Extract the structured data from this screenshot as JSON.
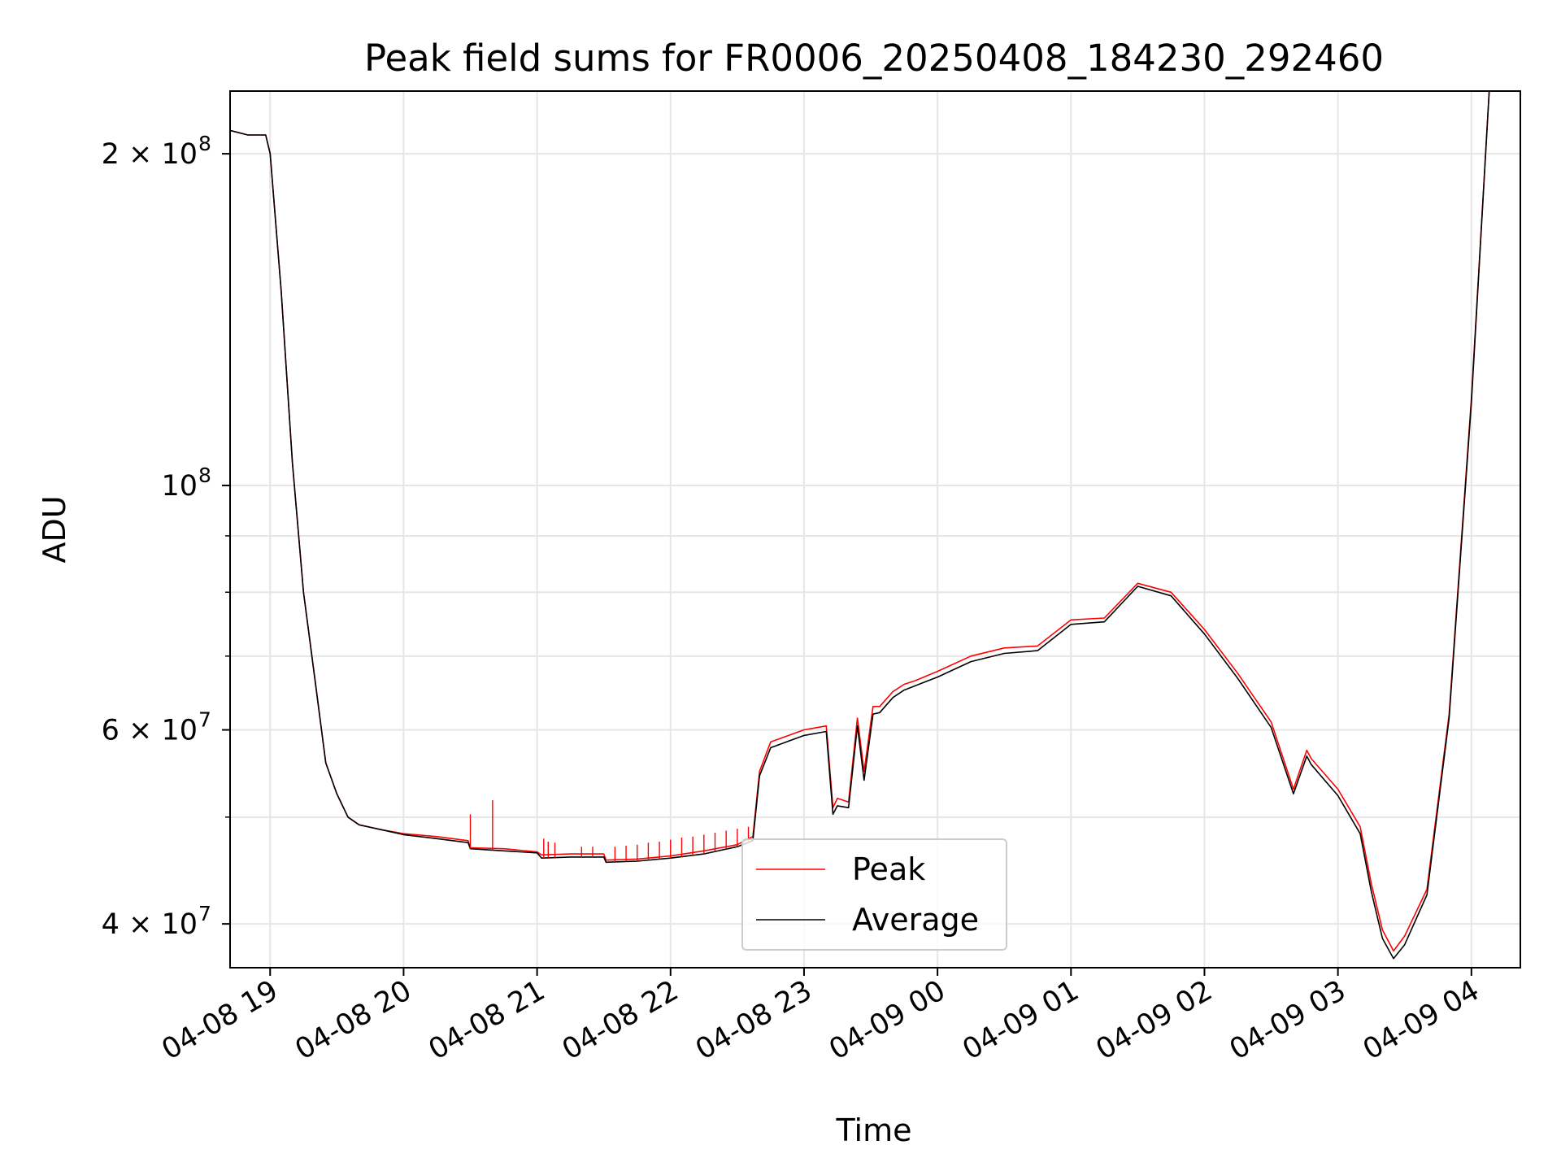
{
  "chart_data": {
    "type": "line",
    "title": "Peak field sums for FR0006_20250408_184230_292460",
    "xlabel": "Time",
    "ylabel": "ADU",
    "xlim": [
      "2025-04-08 18:42",
      "2025-04-09 04:22"
    ],
    "ylim": [
      36500000,
      228000000
    ],
    "yscale": "log",
    "grid": true,
    "legend_placement": "lower center",
    "x_ticks": [
      {
        "t": "2025-04-08 19:00",
        "label": "04-08 19"
      },
      {
        "t": "2025-04-08 20:00",
        "label": "04-08 20"
      },
      {
        "t": "2025-04-08 21:00",
        "label": "04-08 21"
      },
      {
        "t": "2025-04-08 22:00",
        "label": "04-08 22"
      },
      {
        "t": "2025-04-08 23:00",
        "label": "04-08 23"
      },
      {
        "t": "2025-04-09 00:00",
        "label": "04-09 00"
      },
      {
        "t": "2025-04-09 01:00",
        "label": "04-09 01"
      },
      {
        "t": "2025-04-09 02:00",
        "label": "04-09 02"
      },
      {
        "t": "2025-04-09 03:00",
        "label": "04-09 03"
      },
      {
        "t": "2025-04-09 04:00",
        "label": "04-09 04"
      }
    ],
    "y_major_ticks": [
      {
        "v": 40000000,
        "label": "4 × 10",
        "exp": "7"
      },
      {
        "v": 60000000,
        "label": "6 × 10",
        "exp": "7"
      },
      {
        "v": 100000000,
        "label": "10",
        "exp": "8"
      },
      {
        "v": 200000000,
        "label": "2 × 10",
        "exp": "8"
      }
    ],
    "y_minor_gridlines": [
      50000000,
      70000000,
      80000000,
      90000000
    ],
    "series": [
      {
        "name": "Peak",
        "color": "#ff0000",
        "x": [
          "2025-04-08 18:42",
          "2025-04-08 18:50",
          "2025-04-08 18:58",
          "2025-04-08 19:00",
          "2025-04-08 19:05",
          "2025-04-08 19:10",
          "2025-04-08 19:15",
          "2025-04-08 19:20",
          "2025-04-08 19:25",
          "2025-04-08 19:30",
          "2025-04-08 19:35",
          "2025-04-08 19:40",
          "2025-04-08 19:50",
          "2025-04-08 20:00",
          "2025-04-08 20:15",
          "2025-04-08 20:29",
          "2025-04-08 20:30",
          "2025-04-08 20:45",
          "2025-04-08 21:00",
          "2025-04-08 21:02",
          "2025-04-08 21:15",
          "2025-04-08 21:30",
          "2025-04-08 21:31",
          "2025-04-08 21:45",
          "2025-04-08 22:00",
          "2025-04-08 22:15",
          "2025-04-08 22:30",
          "2025-04-08 22:37",
          "2025-04-08 22:40",
          "2025-04-08 22:45",
          "2025-04-08 23:00",
          "2025-04-08 23:10",
          "2025-04-08 23:13",
          "2025-04-08 23:15",
          "2025-04-08 23:20",
          "2025-04-08 23:24",
          "2025-04-08 23:27",
          "2025-04-08 23:31",
          "2025-04-08 23:34",
          "2025-04-08 23:40",
          "2025-04-08 23:45",
          "2025-04-08 23:50",
          "2025-04-09 00:00",
          "2025-04-09 00:15",
          "2025-04-09 00:30",
          "2025-04-09 00:45",
          "2025-04-09 01:00",
          "2025-04-09 01:15",
          "2025-04-09 01:30",
          "2025-04-09 01:45",
          "2025-04-09 02:00",
          "2025-04-09 02:15",
          "2025-04-09 02:30",
          "2025-04-09 02:40",
          "2025-04-09 02:46",
          "2025-04-09 02:48",
          "2025-04-09 03:00",
          "2025-04-09 03:10",
          "2025-04-09 03:15",
          "2025-04-09 03:20",
          "2025-04-09 03:25",
          "2025-04-09 03:30",
          "2025-04-09 03:40",
          "2025-04-09 03:50",
          "2025-04-09 04:00",
          "2025-04-09 04:08"
        ],
        "y": [
          210000000,
          208000000,
          208000000,
          200000000,
          150000000,
          105000000,
          80000000,
          67000000,
          56000000,
          52500000,
          50000000,
          49200000,
          48700000,
          48300000,
          48000000,
          47600000,
          46900000,
          46800000,
          46500000,
          46200000,
          46300000,
          46300000,
          45700000,
          45800000,
          46100000,
          46600000,
          47200000,
          48000000,
          55000000,
          58500000,
          60000000,
          60500000,
          51000000,
          52000000,
          51600000,
          61500000,
          55000000,
          63000000,
          63000000,
          65000000,
          66000000,
          66500000,
          67800000,
          70000000,
          71200000,
          71500000,
          75500000,
          75800000,
          81500000,
          80000000,
          74000000,
          67500000,
          61000000,
          53000000,
          57500000,
          56500000,
          53000000,
          49000000,
          43500000,
          39500000,
          37800000,
          39000000,
          43000000,
          62000000,
          120000000,
          228000000
        ]
      },
      {
        "name": "Average",
        "color": "#000000",
        "x": [
          "2025-04-08 18:42",
          "2025-04-08 18:50",
          "2025-04-08 18:58",
          "2025-04-08 19:00",
          "2025-04-08 19:05",
          "2025-04-08 19:10",
          "2025-04-08 19:15",
          "2025-04-08 19:20",
          "2025-04-08 19:25",
          "2025-04-08 19:30",
          "2025-04-08 19:35",
          "2025-04-08 19:40",
          "2025-04-08 19:50",
          "2025-04-08 20:00",
          "2025-04-08 20:15",
          "2025-04-08 20:29",
          "2025-04-08 20:30",
          "2025-04-08 20:45",
          "2025-04-08 21:00",
          "2025-04-08 21:02",
          "2025-04-08 21:15",
          "2025-04-08 21:30",
          "2025-04-08 21:31",
          "2025-04-08 21:45",
          "2025-04-08 22:00",
          "2025-04-08 22:15",
          "2025-04-08 22:30",
          "2025-04-08 22:37",
          "2025-04-08 22:40",
          "2025-04-08 22:45",
          "2025-04-08 23:00",
          "2025-04-08 23:10",
          "2025-04-08 23:13",
          "2025-04-08 23:15",
          "2025-04-08 23:20",
          "2025-04-08 23:24",
          "2025-04-08 23:27",
          "2025-04-08 23:31",
          "2025-04-08 23:34",
          "2025-04-08 23:40",
          "2025-04-08 23:45",
          "2025-04-08 23:50",
          "2025-04-09 00:00",
          "2025-04-09 00:15",
          "2025-04-09 00:30",
          "2025-04-09 00:45",
          "2025-04-09 01:00",
          "2025-04-09 01:15",
          "2025-04-09 01:30",
          "2025-04-09 01:45",
          "2025-04-09 02:00",
          "2025-04-09 02:15",
          "2025-04-09 02:30",
          "2025-04-09 02:40",
          "2025-04-09 02:46",
          "2025-04-09 02:48",
          "2025-04-09 03:00",
          "2025-04-09 03:10",
          "2025-04-09 03:15",
          "2025-04-09 03:20",
          "2025-04-09 03:25",
          "2025-04-09 03:30",
          "2025-04-09 03:40",
          "2025-04-09 03:50",
          "2025-04-09 04:00",
          "2025-04-09 04:08"
        ],
        "y": [
          210000000,
          208000000,
          208000000,
          200000000,
          150000000,
          105000000,
          80000000,
          67000000,
          56000000,
          52500000,
          50000000,
          49200000,
          48700000,
          48200000,
          47800000,
          47400000,
          46800000,
          46600000,
          46400000,
          45900000,
          46000000,
          46000000,
          45500000,
          45600000,
          45900000,
          46300000,
          47000000,
          47600000,
          54500000,
          57800000,
          59300000,
          59800000,
          50300000,
          51200000,
          51000000,
          60500000,
          54000000,
          62000000,
          62200000,
          64200000,
          65200000,
          65800000,
          67000000,
          69200000,
          70400000,
          70800000,
          74800000,
          75200000,
          81000000,
          79400000,
          73300000,
          66800000,
          60300000,
          52500000,
          56800000,
          55800000,
          52300000,
          48300000,
          42800000,
          38800000,
          37200000,
          38300000,
          42500000,
          61500000,
          119000000,
          228000000
        ]
      }
    ],
    "spikes": [
      {
        "t": "2025-04-08 20:30",
        "y": 50300000
      },
      {
        "t": "2025-04-08 20:40",
        "y": 51800000
      },
      {
        "t": "2025-04-08 21:03",
        "y": 47800000
      },
      {
        "t": "2025-04-08 21:05",
        "y": 47500000
      },
      {
        "t": "2025-04-08 21:08",
        "y": 47400000
      },
      {
        "t": "2025-04-08 21:20",
        "y": 47000000
      },
      {
        "t": "2025-04-08 21:25",
        "y": 47000000
      },
      {
        "t": "2025-04-08 21:35",
        "y": 47000000
      },
      {
        "t": "2025-04-08 21:40",
        "y": 47100000
      },
      {
        "t": "2025-04-08 21:45",
        "y": 47200000
      },
      {
        "t": "2025-04-08 21:50",
        "y": 47400000
      },
      {
        "t": "2025-04-08 21:55",
        "y": 47500000
      },
      {
        "t": "2025-04-08 22:00",
        "y": 47700000
      },
      {
        "t": "2025-04-08 22:05",
        "y": 47900000
      },
      {
        "t": "2025-04-08 22:10",
        "y": 48000000
      },
      {
        "t": "2025-04-08 22:15",
        "y": 48200000
      },
      {
        "t": "2025-04-08 22:20",
        "y": 48400000
      },
      {
        "t": "2025-04-08 22:25",
        "y": 48600000
      },
      {
        "t": "2025-04-08 22:30",
        "y": 48800000
      },
      {
        "t": "2025-04-08 22:35",
        "y": 49000000
      }
    ]
  }
}
